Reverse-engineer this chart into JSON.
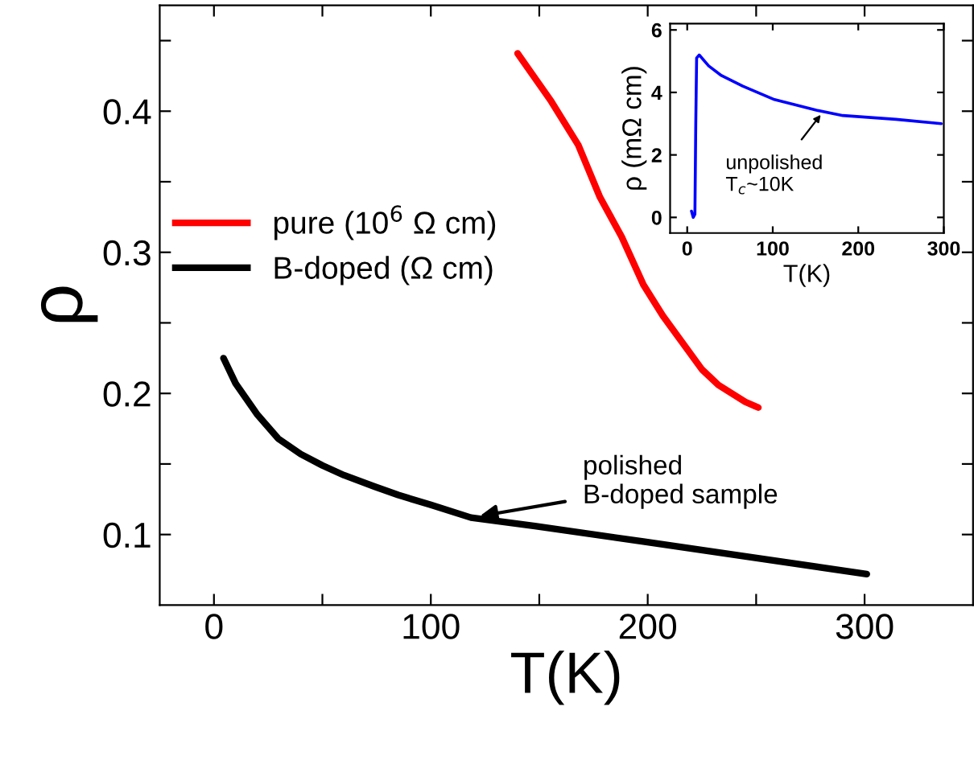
{
  "chart_data": [
    {
      "type": "line",
      "xlabel": "T(K)",
      "ylabel": "ρ",
      "xlim": [
        -25,
        350
      ],
      "ylim": [
        0.05,
        0.475
      ],
      "xticks": [
        0,
        {
          "value": 50,
          "label": null
        },
        100,
        {
          "value": 150,
          "label": null
        },
        200,
        {
          "value": 250,
          "label": null
        },
        300
      ],
      "yticks": [
        0.1,
        {
          "value": 0.15,
          "label": null
        },
        0.2,
        {
          "value": 0.25,
          "label": null
        },
        0.3,
        {
          "value": 0.35,
          "label": null
        },
        0.4,
        {
          "value": 0.45,
          "label": null
        }
      ],
      "legend": "left",
      "grid": false,
      "series": [
        {
          "name": "pure (10$^{6}$ Ω cm)",
          "color": "#ff0000",
          "x": [
            140,
            155.5,
            168,
            178,
            188,
            198,
            207,
            225,
            232.6,
            245,
            251
          ],
          "values": [
            0.441,
            0.407,
            0.376,
            0.339,
            0.311,
            0.277,
            0.255,
            0.217,
            0.206,
            0.194,
            0.19
          ]
        },
        {
          "name": "B-doped (Ω cm)",
          "color": "#000000",
          "x": [
            4.4,
            10,
            20,
            29.6,
            40,
            50,
            60,
            74,
            85,
            100,
            118.5,
            148,
            198,
            247,
            301
          ],
          "values": [
            0.225,
            0.207,
            0.185,
            0.168,
            0.157,
            0.149,
            0.142,
            0.134,
            0.128,
            0.121,
            0.112,
            0.106,
            0.095,
            0.084,
            0.072
          ]
        }
      ],
      "annotations": [
        {
          "text": "polished\nB-doped sample",
          "x": 118.5,
          "y": 0.112
        }
      ]
    },
    {
      "type": "line",
      "xlabel": "T(K)",
      "ylabel": "ρ (mΩ cm)",
      "xlim": [
        -20,
        300
      ],
      "ylim": [
        -0.5,
        6.2
      ],
      "xticks": [
        0,
        100,
        200,
        300
      ],
      "yticks": [
        0,
        2,
        4,
        6
      ],
      "grid": false,
      "series": [
        {
          "color": "#0000ff",
          "x": [
            5,
            7,
            9,
            10,
            11,
            14,
            25,
            40,
            65,
            102,
            151,
            182,
            244,
            297
          ],
          "values": [
            0.2,
            0.0,
            0.1,
            3,
            5.1,
            5.2,
            4.85,
            4.54,
            4.2,
            3.77,
            3.43,
            3.26,
            3.14,
            3.0
          ]
        }
      ],
      "annotations": [
        {
          "text": "unpolished\nT$_{c}$~10K",
          "x": 162.5,
          "y": 3.51
        }
      ]
    }
  ]
}
